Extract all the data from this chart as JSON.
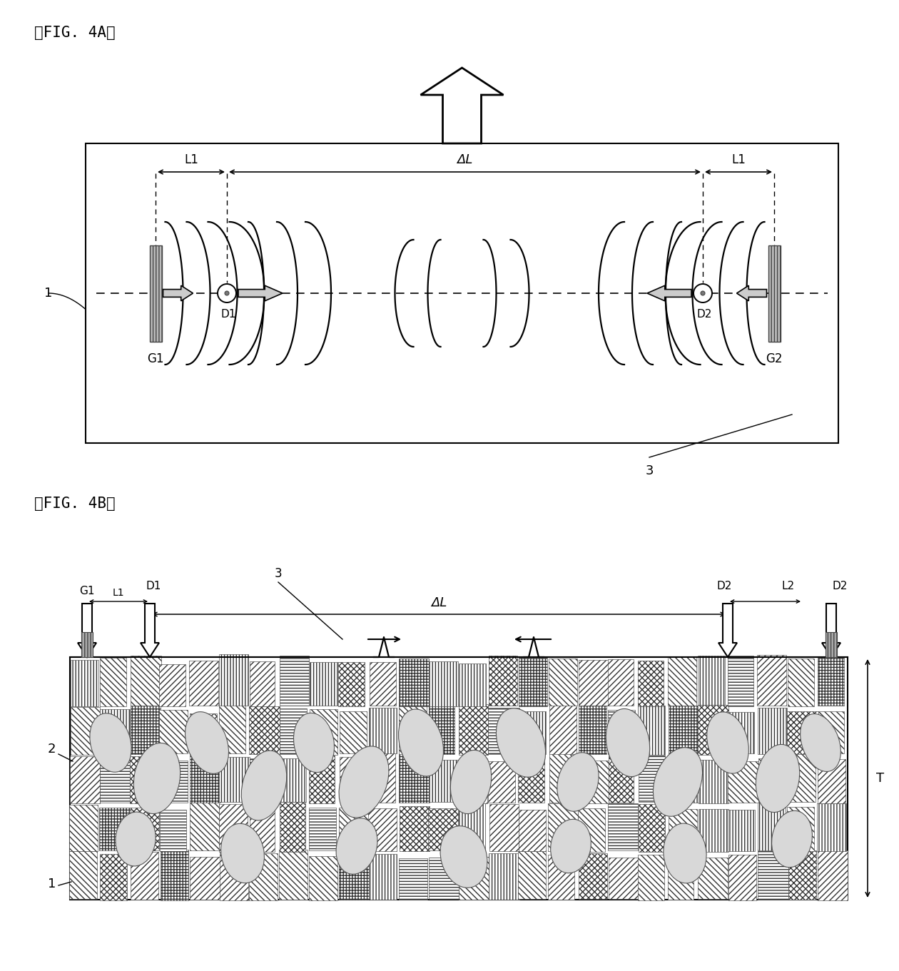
{
  "title_4a": "【FIG. 4A】",
  "title_4b": "【FIG. 4B】",
  "bg_color": "#ffffff",
  "line_color": "#000000"
}
